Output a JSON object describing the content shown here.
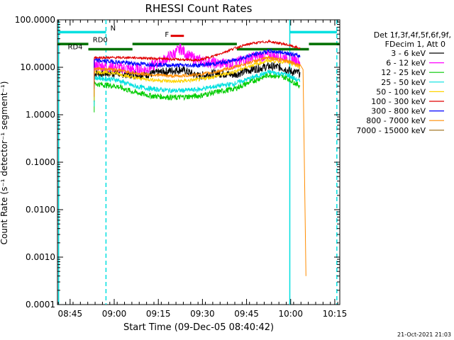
{
  "chart_data": {
    "type": "line",
    "title": "RHESSI Count Rates",
    "xlabel": "Start Time (09-Dec-05 08:40:42)",
    "ylabel": "Count Rate (s⁻¹ detector⁻¹ segment⁻¹)",
    "yscale": "log",
    "ylim": [
      0.0001,
      100
    ],
    "xlim_minutes": [
      0,
      96
    ],
    "ytick_labels": [
      "0.0001",
      "0.0010",
      "0.0100",
      "0.1000",
      "1.0000",
      "10.0000",
      "100.0000"
    ],
    "ytick_values": [
      0.0001,
      0.001,
      0.01,
      0.1,
      1,
      10,
      100
    ],
    "xtick_labels": [
      "08:45",
      "09:00",
      "09:15",
      "09:30",
      "09:45",
      "10:00",
      "10:15"
    ],
    "xtick_minutes": [
      4.3,
      19.3,
      34.3,
      49.3,
      64.3,
      79.3,
      94.3
    ],
    "legend_header": [
      "Det 1f,3f,4f,5f,6f,9f,",
      "FDecim 1, Att 0"
    ],
    "legend_position": "right",
    "footer_date": "21-Oct-2021 21:03",
    "series": [
      {
        "name": "3 - 6 keV",
        "color": "#000000",
        "x": [
          12.5,
          20,
          26,
          30,
          36,
          42,
          48,
          54,
          60,
          66,
          72,
          76,
          80,
          82.5
        ],
        "y": [
          7.5,
          7.5,
          7,
          7,
          8,
          9,
          6.5,
          7.5,
          7,
          9,
          10.5,
          10,
          8,
          7.5
        ]
      },
      {
        "name": "6 - 12 keV",
        "color": "#ff00ff",
        "x": [
          12.5,
          20,
          26,
          30,
          36,
          40,
          42,
          44,
          48,
          54,
          60,
          66,
          72,
          78,
          82.5
        ],
        "y": [
          11,
          10,
          9,
          9,
          14,
          20,
          25,
          18,
          14,
          12,
          12,
          16,
          18,
          16,
          13
        ]
      },
      {
        "name": "12 - 25 keV",
        "color": "#00cc00",
        "x": [
          12.5,
          20,
          26,
          32,
          40,
          48,
          54,
          60,
          66,
          72,
          78,
          82.5
        ],
        "y": [
          4.5,
          4,
          3,
          2.5,
          2.3,
          2.5,
          3,
          3.5,
          5,
          7,
          6,
          4
        ]
      },
      {
        "name": "25 - 50 keV",
        "color": "#00e0e0",
        "x": [
          12.5,
          20,
          26,
          32,
          40,
          48,
          54,
          60,
          66,
          72,
          78,
          82.5
        ],
        "y": [
          6,
          5.5,
          4,
          3.5,
          3.2,
          3.4,
          4,
          4.5,
          6,
          8,
          7,
          5
        ]
      },
      {
        "name": "50 - 100 keV",
        "color": "#ffd400",
        "x": [
          12.5,
          20,
          26,
          32,
          40,
          48,
          54,
          60,
          66,
          72,
          78,
          82.5
        ],
        "y": [
          8,
          7.5,
          6,
          5.5,
          5,
          5.5,
          6.5,
          8,
          11,
          14,
          13,
          10
        ]
      },
      {
        "name": "100 - 300 keV",
        "color": "#e00000",
        "x": [
          12.5,
          26,
          48,
          54,
          60,
          66,
          72,
          78,
          82.5
        ],
        "y": [
          16,
          16,
          14,
          18,
          25,
          32,
          35,
          30,
          25
        ]
      },
      {
        "name": "300 - 800 keV",
        "color": "#0000ff",
        "x": [
          12.5,
          20,
          26,
          32,
          40,
          48,
          54,
          60,
          66,
          72,
          78,
          82.5
        ],
        "y": [
          14,
          13,
          12,
          11.5,
          11,
          11,
          12,
          14,
          18,
          22,
          20,
          17
        ]
      },
      {
        "name": "800 - 7000 keV",
        "color": "#ff8c00",
        "x": [
          12.5,
          20,
          26,
          32,
          40,
          48,
          54,
          60,
          66,
          72,
          78,
          82.5,
          83.5,
          84.5
        ],
        "y": [
          9.5,
          9,
          7.5,
          7,
          6.5,
          7,
          8,
          10,
          13,
          16,
          14,
          11,
          9,
          0.0004
        ]
      },
      {
        "name": "7000 - 15000 keV",
        "color": "#9a6a10",
        "x": [],
        "y": []
      }
    ],
    "annotations": [
      {
        "label": "RD4",
        "color": "#007000"
      },
      {
        "label": "RD0",
        "color": "#007000"
      },
      {
        "label": "F",
        "color": "#e00000"
      },
      {
        "label": "N",
        "color": "#00e0e0"
      }
    ]
  }
}
